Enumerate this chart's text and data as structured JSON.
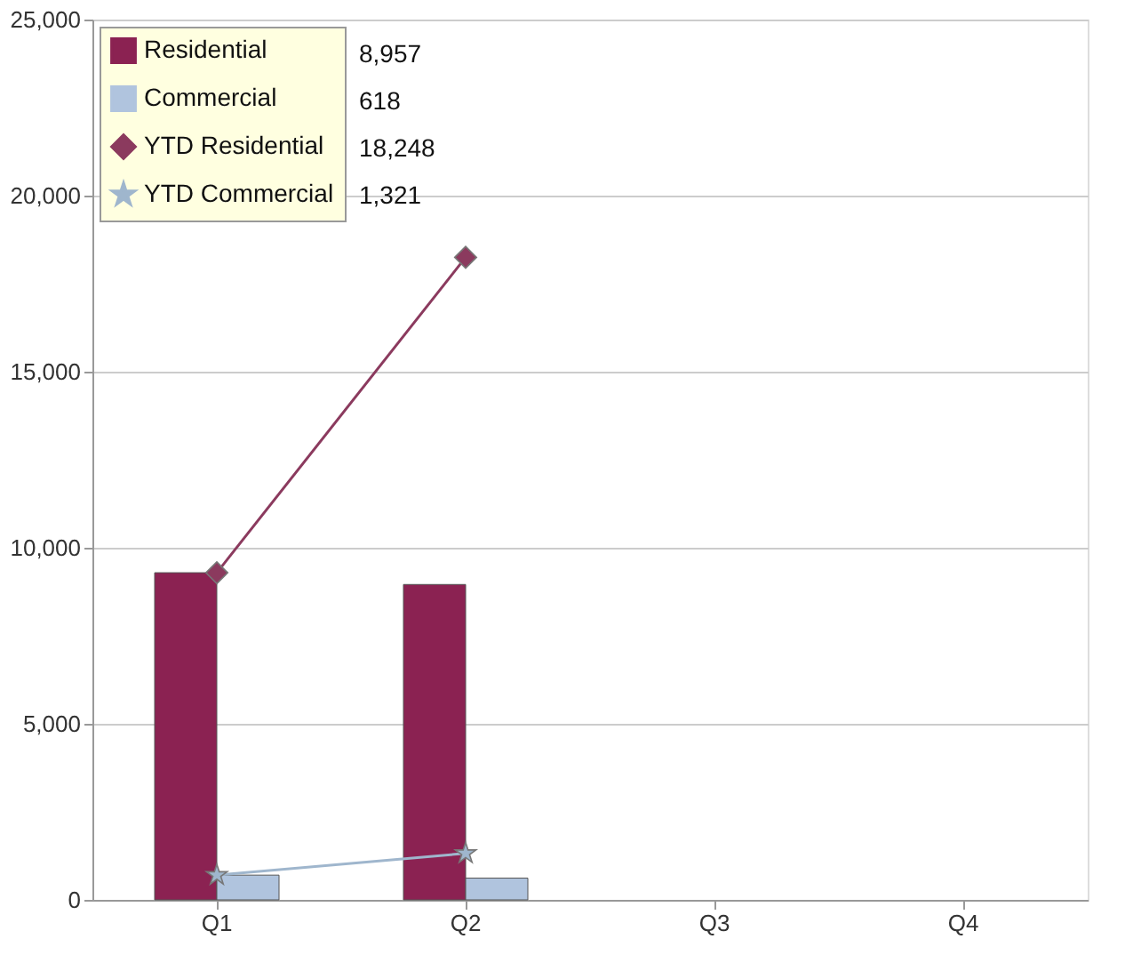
{
  "chart_data": {
    "type": "bar",
    "categories": [
      "Q1",
      "Q2",
      "Q3",
      "Q4"
    ],
    "series": [
      {
        "name": "Residential",
        "color": "#8b2252",
        "values": [
          9291,
          8957,
          null,
          null
        ]
      },
      {
        "name": "Commercial",
        "color": "#b0c4de",
        "values": [
          703,
          618,
          null,
          null
        ]
      },
      {
        "name": "YTD Residential",
        "color": "#8b3a5e",
        "type": "line",
        "marker": "diamond",
        "values": [
          9291,
          18248,
          null,
          null
        ]
      },
      {
        "name": "YTD Commercial",
        "color": "#9fb6cd",
        "type": "line",
        "marker": "star",
        "values": [
          703,
          1321,
          null,
          null
        ]
      }
    ],
    "annotations": [
      "8,957",
      "618",
      "18,248",
      "1,321"
    ],
    "ylim": [
      0,
      25000
    ],
    "yticks": [
      {
        "value": 0,
        "label": "0"
      },
      {
        "value": 5000,
        "label": "5,000"
      },
      {
        "value": 10000,
        "label": "10,000"
      },
      {
        "value": 15000,
        "label": "15,000"
      },
      {
        "value": 20000,
        "label": "20,000"
      },
      {
        "value": 25000,
        "label": "25,000"
      }
    ],
    "grid": "y",
    "legend": "top left"
  }
}
